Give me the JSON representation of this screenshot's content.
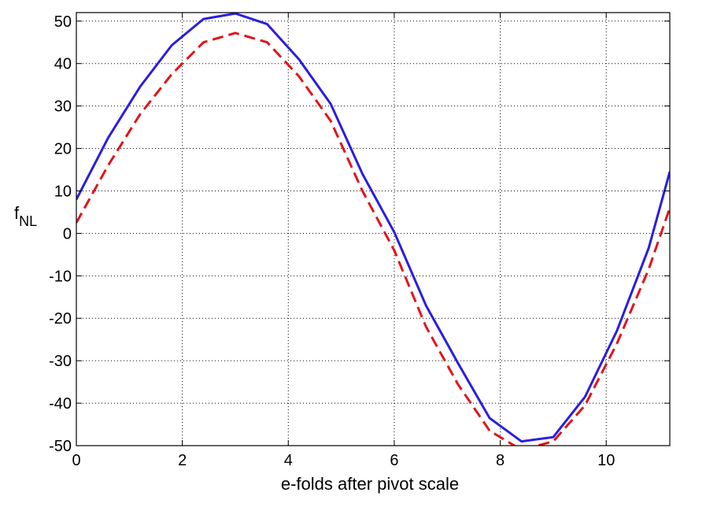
{
  "chart_data": {
    "type": "line",
    "title": "",
    "xlabel": "e-folds after pivot scale",
    "ylabel": "f",
    "ylabel_subscript": "NL",
    "xlim": [
      0,
      11.2
    ],
    "ylim": [
      -50,
      52
    ],
    "xticks": [
      0,
      2,
      4,
      6,
      8,
      10
    ],
    "yticks": [
      -50,
      -40,
      -30,
      -20,
      -10,
      0,
      10,
      20,
      30,
      40,
      50
    ],
    "xtick_labels": [
      "0",
      "2",
      "4",
      "6",
      "8",
      "10"
    ],
    "ytick_labels": [
      "-50",
      "-40",
      "-30",
      "-20",
      "-10",
      "0",
      "10",
      "20",
      "30",
      "40",
      "50"
    ],
    "grid": true,
    "series": [
      {
        "color": "#2a1ee0",
        "style": "solid",
        "x": [
          0,
          0.6,
          1.2,
          1.8,
          2.4,
          3.0,
          3.6,
          4.2,
          4.8,
          5.4,
          6.0,
          6.6,
          7.2,
          7.8,
          8.4,
          9.0,
          9.6,
          10.2,
          10.8,
          11.2
        ],
        "y": [
          8,
          22.5,
          34.5,
          44.3,
          50.5,
          51.8,
          49.3,
          41,
          30.5,
          14,
          0.3,
          -17,
          -30.5,
          -43.5,
          -49,
          -48,
          -38.5,
          -23,
          -3.5,
          14.5
        ]
      },
      {
        "color": "#e0151b",
        "style": "dashed",
        "x": [
          0,
          0.6,
          1.2,
          1.8,
          2.4,
          3.0,
          3.6,
          4.2,
          4.8,
          5.4,
          6.0,
          6.6,
          7.2,
          7.8,
          8.4,
          9.0,
          9.6,
          10.2,
          10.8,
          11.2
        ],
        "y": [
          2.5,
          16,
          28,
          37.5,
          45,
          47.2,
          45,
          37,
          26.5,
          10,
          -4,
          -22,
          -35.5,
          -46.5,
          -51,
          -49,
          -40.5,
          -26,
          -8.5,
          6
        ]
      }
    ]
  }
}
